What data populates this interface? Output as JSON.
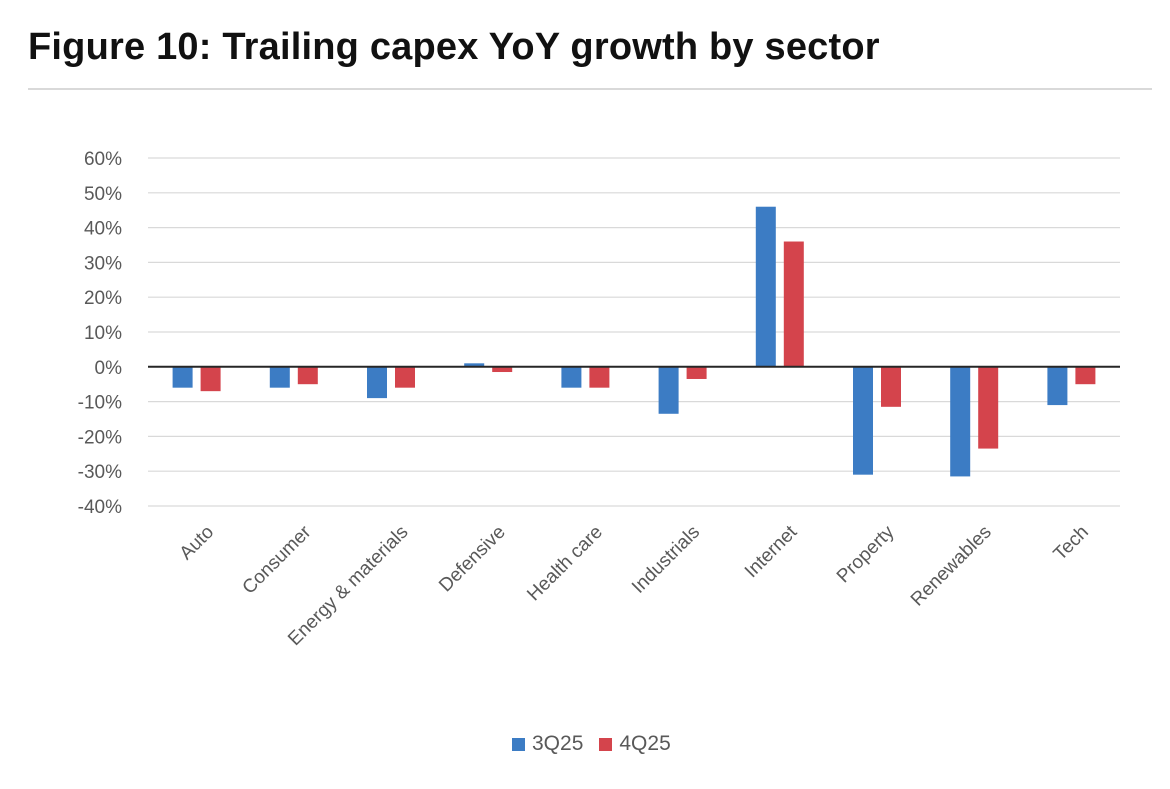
{
  "title": "Figure 10: Trailing capex YoY growth by sector",
  "chart_data": {
    "type": "bar",
    "title": "Figure 10: Trailing capex YoY growth by sector",
    "xlabel": "",
    "ylabel": "",
    "ylim": [
      -40,
      60
    ],
    "yticks": [
      60,
      50,
      40,
      30,
      20,
      10,
      0,
      -10,
      -20,
      -30,
      -40
    ],
    "ytick_labels": [
      "60%",
      "50%",
      "40%",
      "30%",
      "20%",
      "10%",
      "0%",
      "-10%",
      "-20%",
      "-30%",
      "-40%"
    ],
    "categories": [
      "Auto",
      "Consumer",
      "Energy & materials",
      "Defensive",
      "Health care",
      "Industrials",
      "Internet",
      "Property",
      "Renewables",
      "Tech"
    ],
    "series": [
      {
        "name": "3Q25",
        "color": "#3c7cc4",
        "values": [
          -6,
          -6,
          -9,
          1,
          -6,
          -13.5,
          46,
          -31,
          -31.5,
          -11
        ]
      },
      {
        "name": "4Q25",
        "color": "#d4444c",
        "values": [
          -7,
          -5,
          -6,
          -1.5,
          -6,
          -3.5,
          36,
          -11.5,
          -23.5,
          -5
        ]
      }
    ],
    "grid": true,
    "legend_position": "bottom-center"
  }
}
